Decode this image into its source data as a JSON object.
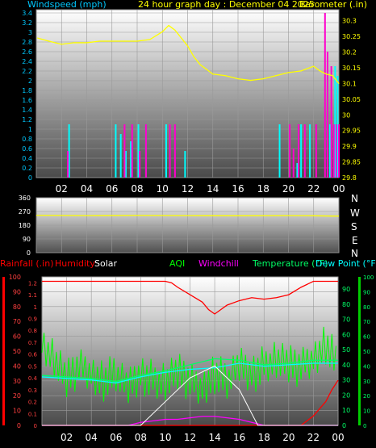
{
  "panel1": {
    "title_left": "Windspeed (mph)",
    "title_center": "24 hour graph day : December 04 2025",
    "title_right": "Barometer (.in)",
    "colors": {
      "title_left": "#00c8ff",
      "title_center": "#ffff00",
      "title_right": "#ffff00",
      "barometer": "#ffff00",
      "wind": "#00ffff",
      "gust": "#ff00cc"
    }
  },
  "panel2": {
    "direction_labels": [
      "N",
      "W",
      "S",
      "E",
      "N"
    ],
    "left_ticks": [
      "360",
      "270",
      "180",
      "90",
      "0"
    ]
  },
  "panel3": {
    "legend": [
      {
        "text": "Rainfall (.in)",
        "color": "#ff0000"
      },
      {
        "text": "Humidity",
        "color": "#ff0000"
      },
      {
        "text": "Solar",
        "color": "#ffffff"
      },
      {
        "text": "AQI",
        "color": "#00ff00"
      },
      {
        "text": "Windchill",
        "color": "#ff00ff"
      },
      {
        "text": "Temperature (°F)",
        "color": "#00ff66"
      },
      {
        "text": "Dew Point (°F)",
        "color": "#00ffff"
      }
    ]
  },
  "chart_data": [
    {
      "type": "line",
      "title": "24 hour graph day : December 04 2025",
      "x_tick_labels": [
        "02",
        "04",
        "06",
        "08",
        "10",
        "12",
        "14",
        "16",
        "18",
        "20",
        "22",
        "00"
      ],
      "y_left_label": "Windspeed (mph)",
      "y_left_ticks": [
        "0",
        "0.2",
        "0.4",
        "0.6",
        "0.8",
        "1",
        "1.2",
        "1.4",
        "1.6",
        "1.8",
        "2",
        "2.2",
        "2.4",
        "2.6",
        "2.8",
        "3",
        "3.2",
        "3.4"
      ],
      "y_left_range": [
        0,
        3.4
      ],
      "y_right_label": "Barometer (.in)",
      "y_right_ticks": [
        "29.8",
        "29.85",
        "29.9",
        "29.95",
        "30",
        "30.05",
        "30.1",
        "30.15",
        "30.2",
        "30.25",
        "30.3"
      ],
      "y_right_range": [
        29.8,
        30.325
      ],
      "series": [
        {
          "name": "Barometer (.in)",
          "axis": "right",
          "color": "#ffff00",
          "x": [
            0.1,
            1,
            2,
            3,
            4,
            5,
            6,
            7,
            8,
            9,
            10,
            10.5,
            11,
            11.5,
            12,
            12.5,
            13,
            14,
            15,
            16,
            17,
            18,
            19,
            20,
            21,
            22,
            22.5,
            23,
            23.5,
            24
          ],
          "values": [
            30.245,
            30.235,
            30.225,
            30.23,
            30.23,
            30.235,
            30.235,
            30.235,
            30.235,
            30.24,
            30.265,
            30.285,
            30.27,
            30.245,
            30.22,
            30.185,
            30.16,
            30.13,
            30.125,
            30.115,
            30.11,
            30.115,
            30.125,
            30.135,
            30.14,
            30.155,
            30.14,
            30.13,
            30.125,
            30.1
          ]
        },
        {
          "name": "Wind",
          "axis": "left",
          "color": "#00ffff",
          "x": [
            2.6,
            6.3,
            6.7,
            7.1,
            7.5,
            8.1,
            8.7,
            10.3,
            11.8,
            19.3,
            20.7,
            21.0,
            21.7,
            23.3,
            23.7,
            23.9
          ],
          "values": [
            1.1,
            1.1,
            0.9,
            0.55,
            0.75,
            1.1,
            1.1,
            1.1,
            0.55,
            1.1,
            0.3,
            1.1,
            1.1,
            1.1,
            2.3,
            2.1
          ]
        },
        {
          "name": "Gust",
          "axis": "left",
          "color": "#ff00cc",
          "x": [
            2.5,
            7.0,
            7.6,
            8.2,
            8.7,
            10.6,
            11.0,
            20.1,
            20.4,
            20.8,
            21.3,
            22.2,
            22.9,
            23.1,
            23.4,
            23.6,
            23.8,
            24.0
          ],
          "values": [
            0.55,
            1.1,
            1.1,
            0.55,
            1.1,
            1.1,
            1.1,
            1.1,
            0.6,
            1.1,
            1.1,
            1.1,
            3.4,
            2.6,
            2.3,
            1.1,
            1.1,
            1.1
          ]
        }
      ]
    },
    {
      "type": "line",
      "x_tick_labels": [
        "02",
        "04",
        "06",
        "08",
        "10",
        "12",
        "14",
        "16",
        "18",
        "20",
        "22",
        "00"
      ],
      "y_ticks": [
        "0",
        "90",
        "180",
        "270",
        "360"
      ],
      "y_range": [
        0,
        360
      ],
      "series": [
        {
          "name": "Wind Direction",
          "color": "#ffff00",
          "x": [
            0,
            4,
            8,
            12,
            16,
            20,
            22,
            23.5,
            24
          ],
          "values": [
            245,
            243,
            244,
            243,
            242,
            243,
            242,
            240,
            240
          ]
        }
      ]
    },
    {
      "type": "line",
      "x_tick_labels": [
        "02",
        "04",
        "06",
        "08",
        "10",
        "12",
        "14",
        "16",
        "18",
        "20",
        "22",
        "00"
      ],
      "y_left_ticks_rain": [
        "0",
        "0.1",
        "0.2",
        "0.3",
        "0.4",
        "0.5",
        "0.6",
        "0.7",
        "0.8",
        "0.9",
        "1",
        "1.1",
        "1.2"
      ],
      "y_left_ticks_humidity": [
        "0",
        "10",
        "20",
        "30",
        "40",
        "50",
        "60",
        "70",
        "80",
        "90",
        "100"
      ],
      "y_right_ticks_temp": [
        "0",
        "10",
        "20",
        "30",
        "40",
        "50",
        "60",
        "70",
        "80",
        "90"
      ],
      "y_right_ticks_aqi": [
        "0",
        "10",
        "20",
        "30",
        "40",
        "50",
        "60",
        "70",
        "80",
        "90",
        "100"
      ],
      "humidity_range": [
        0,
        100
      ],
      "temperature_range": [
        0,
        98
      ],
      "series": [
        {
          "name": "Humidity",
          "color": "#ff0000",
          "x": [
            0,
            10,
            10.5,
            11,
            12,
            13,
            13.5,
            14,
            14.5,
            15,
            16,
            17,
            18,
            19,
            20,
            21,
            22,
            22.5,
            24
          ],
          "values": [
            97,
            97,
            96,
            93,
            88,
            83,
            78,
            75,
            78,
            81,
            84,
            86,
            85,
            86,
            88,
            93,
            97,
            97,
            97
          ]
        },
        {
          "name": "Temperature (°F)",
          "color": "#00ff66",
          "x": [
            0,
            2,
            4,
            6,
            8,
            10,
            12,
            14,
            16,
            18,
            20,
            22,
            24
          ],
          "values": [
            33,
            32,
            31,
            29,
            33,
            36,
            40,
            44,
            43,
            40,
            41,
            43,
            43
          ]
        },
        {
          "name": "Dew Point (°F)",
          "color": "#00ffff",
          "x": [
            0,
            2,
            4,
            6,
            8,
            10,
            12,
            14,
            16,
            18,
            20,
            22,
            24
          ],
          "values": [
            32,
            31,
            30,
            28,
            32,
            35,
            37,
            38,
            41,
            39,
            40,
            41,
            41
          ]
        },
        {
          "name": "Rainfall (.in)",
          "color": "#ff0000",
          "x": [
            0,
            21,
            22,
            23,
            23.5,
            24
          ],
          "values": [
            0,
            0,
            0.08,
            0.2,
            0.3,
            0.38
          ]
        },
        {
          "name": "AQI",
          "color": "#00ff00",
          "x": [
            0,
            1,
            2,
            3,
            4,
            5,
            6,
            7,
            8,
            9,
            10,
            11,
            12,
            13,
            14,
            15,
            16,
            17,
            18,
            19,
            20,
            21,
            22,
            23,
            24
          ],
          "values": [
            55,
            45,
            30,
            40,
            35,
            30,
            35,
            25,
            35,
            30,
            30,
            35,
            30,
            25,
            35,
            30,
            40,
            35,
            40,
            45,
            40,
            40,
            45,
            55,
            40
          ]
        },
        {
          "name": "Windchill",
          "color": "#ff00ff",
          "x": [
            0,
            7,
            8,
            9,
            10,
            11,
            12,
            13,
            14,
            15,
            16,
            17,
            18,
            24
          ],
          "values": [
            0,
            0,
            2,
            3,
            4,
            4,
            5,
            6,
            6,
            5,
            4,
            2,
            0,
            0
          ]
        },
        {
          "name": "Solar",
          "color": "#ffffff",
          "x": [
            0,
            8,
            10,
            12,
            14,
            16,
            17.5,
            24
          ],
          "values": [
            0,
            0,
            0.2,
            0.4,
            0.5,
            0.3,
            0,
            0
          ]
        }
      ]
    }
  ]
}
